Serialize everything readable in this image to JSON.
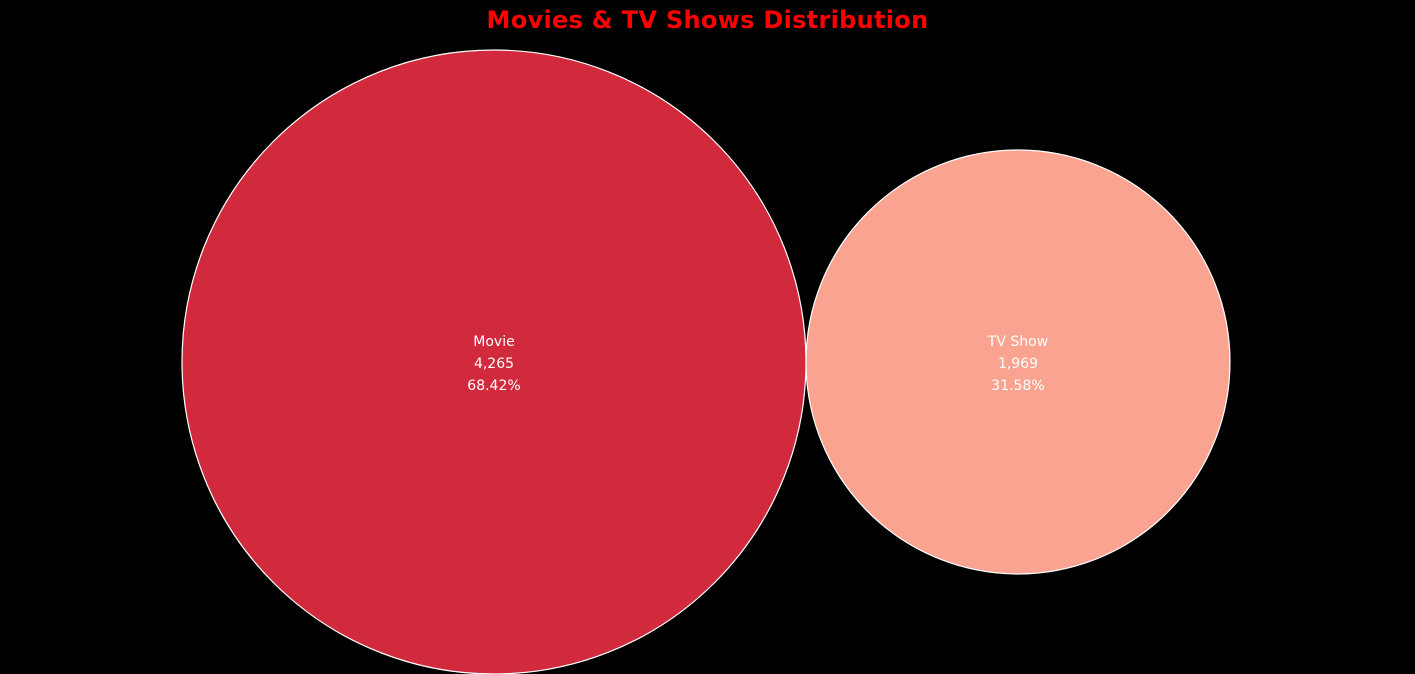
{
  "chart_data": {
    "type": "bubble",
    "title": "Movies & TV Shows Distribution",
    "items": [
      {
        "label": "Movie",
        "value": 4265,
        "value_text": "4,265",
        "percent_text": "68.42%",
        "color": "#d12a3d"
      },
      {
        "label": "TV Show",
        "value": 1969,
        "value_text": "1,969",
        "percent_text": "31.58%",
        "color": "#fba391"
      }
    ],
    "background": "#000000",
    "title_color": "#ff0000",
    "border_color": "#ffffff"
  }
}
